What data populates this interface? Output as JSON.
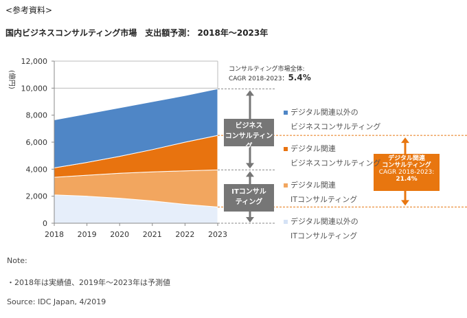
{
  "header": {
    "ref": "<参考資料>",
    "title": "国内ビジネスコンサルティング市場　支出額予測： 2018年～2023年"
  },
  "chart_data": {
    "type": "area",
    "stacked": true,
    "title": "国内ビジネスコンサルティング市場　支出額予測： 2018年～2023年",
    "ylabel": "(億円)",
    "xlabel": "",
    "ylim": [
      0,
      12000
    ],
    "yticks": [
      "0",
      "2,000",
      "4,000",
      "6,000",
      "8,000",
      "10,000",
      "12,000"
    ],
    "ytick_values": [
      0,
      2000,
      4000,
      6000,
      8000,
      10000,
      12000
    ],
    "categories": [
      "2018",
      "2019",
      "2020",
      "2021",
      "2022",
      "2023"
    ],
    "series": [
      {
        "name": "デジタル関連以外のITコンサルティング",
        "legend": [
          "デジタル関連以外の",
          "ITコンサルティング"
        ],
        "color": "#e6eefa",
        "values": [
          2100,
          2000,
          1850,
          1650,
          1400,
          1200
        ]
      },
      {
        "name": "デジタル関連ITコンサルティング",
        "legend": [
          "デジタル関連",
          "ITコンサルティング"
        ],
        "color": "#f2a65f",
        "values": [
          1300,
          1550,
          1850,
          2150,
          2480,
          2750
        ]
      },
      {
        "name": "デジタル関連ビジネスコンサルティング",
        "legend": [
          "デジタル関連",
          "ビジネスコンサルティング"
        ],
        "color": "#e8730f",
        "values": [
          700,
          950,
          1250,
          1650,
          2120,
          2550
        ]
      },
      {
        "name": "デジタル関連以外のビジネスコンサルティング",
        "legend": [
          "デジタル関連以外の",
          "ビジネスコンサルティング"
        ],
        "color": "#4f86c6",
        "values": [
          3550,
          3600,
          3600,
          3550,
          3450,
          3450
        ]
      }
    ],
    "annotations": {
      "total_line1": "コンサルティング市場全体:",
      "total_line2": "CAGR 2018-2023：",
      "total_cagr": "5.4%",
      "business": [
        "ビジネス",
        "コンサルティング"
      ],
      "it": [
        "ITコンサル",
        "ティング"
      ],
      "digital": [
        "デジタル関連",
        "コンサルティング",
        "CAGR 2018-2023:",
        "21.4%"
      ]
    }
  },
  "notes": {
    "note": "Note:",
    "bullet": "・2018年は実績値、2019年～2023年は予測値",
    "source": "Source: IDC Japan, 4/2019"
  }
}
